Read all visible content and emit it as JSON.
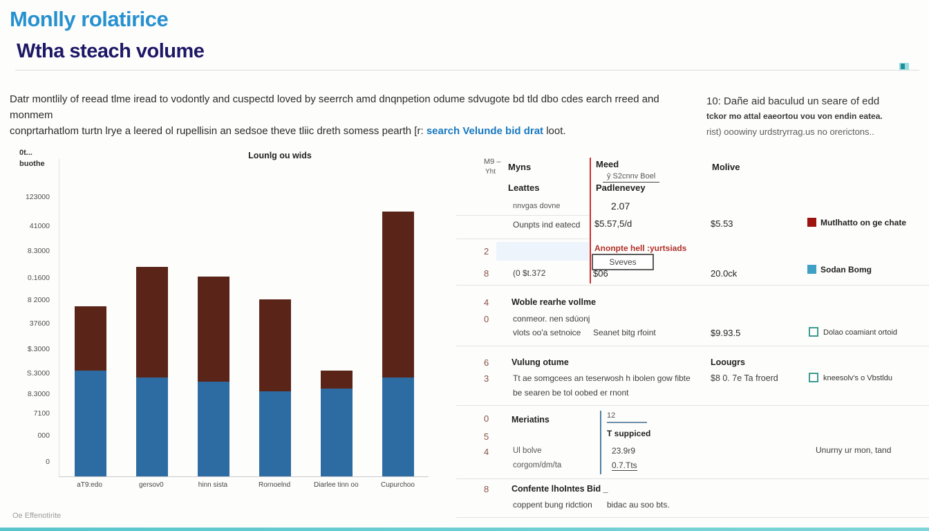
{
  "page": {
    "title": "Monlly rolatirice",
    "subtitle": "Wtha steach volume",
    "intro_line1": "Datr montlily of reead tlme iread to vodontly and cuspectd loved by seerrch amd dnqnpetion odume sdvugote bd tld dbo cdes earch rreed and monmem",
    "intro_line2_prefix": "conprtarhatlom turtn lrye a leered ol rupellisin an sedsoe theve tliic dreth somess pearth [r: ",
    "intro_link": "search Velunde bid drat",
    "intro_line2_suffix": " loot.",
    "footer": "Oe Effenotirite",
    "accent_teal": "#59c6cc"
  },
  "note": {
    "line1": "10: Dañe aid baculud un seare of edd",
    "line2": "tckor mo attal eaeortou vou von endin eatea.",
    "line3": "rist) ooowiny urdstryrrag.us no orerictons.."
  },
  "chart_data": {
    "type": "bar",
    "stacked": true,
    "title": "Lounlg ou wids",
    "y_axis_title": "0t...\nbuothe",
    "xlabel": "",
    "ylabel": "",
    "grid": false,
    "legend_position": "right-panel",
    "categories": [
      "aT9:edo",
      "gersov0",
      "hinn sista",
      "Rornoelnd",
      "Diarlee tinn oo",
      "Cupurchoo"
    ],
    "series": [
      {
        "name": "Sodan Bomg",
        "color": "#2d6ca3",
        "values": [
          46500,
          43500,
          41600,
          37400,
          38600,
          43500
        ]
      },
      {
        "name": "Mutlhatto on ge chate",
        "color": "#5a2418",
        "values": [
          28300,
          48600,
          46500,
          40400,
          7900,
          73000
        ]
      }
    ],
    "ylim": [
      0,
      140000
    ],
    "y_ticks": [
      {
        "label": "123000",
        "y": 75
      },
      {
        "label": "41000",
        "y": 117
      },
      {
        "label": "8.3000",
        "y": 153
      },
      {
        "label": "0.1600",
        "y": 192
      },
      {
        "label": "8 2000",
        "y": 224
      },
      {
        "label": "37600",
        "y": 258
      },
      {
        "label": "$.3000",
        "y": 295
      },
      {
        "label": "S.3000",
        "y": 330
      },
      {
        "label": "8.3000",
        "y": 360
      },
      {
        "label": "7100",
        "y": 388
      },
      {
        "label": "000",
        "y": 420
      },
      {
        "label": "0",
        "y": 458
      }
    ]
  },
  "legend": {
    "red_label": "Mutlhatto on ge chate",
    "red_color": "#9c1310",
    "blue_label": "Sodan Bomg",
    "blue_color": "#3f9fc4"
  },
  "panel": {
    "corner_top": "M9 –",
    "corner_bottom": "Yht",
    "col1_header": "Myns",
    "col2_header": "Meed",
    "col2_sub": "ŷ S2cnnv Boel",
    "col3_header": "Molive",
    "row_leattes": "Leattes",
    "row_padlenevey": "Padlenevey",
    "row_nnvgas": "nnvgas dovne",
    "value_207": "2.07",
    "row_ounpts": "Ounpts ind eatecd",
    "value_557": "$5.57,5/d",
    "value_553": "$5.53",
    "num_2": "2",
    "alert_text": "Anonpte hell :yurtsiads",
    "box_label": "Sveves",
    "num_8": "8",
    "row_0st": "(0 $t.372",
    "value_06": "$06",
    "value_200": "20.0ck",
    "num_4": "4",
    "row_woble": "Woble rearhe vollme",
    "num_0a": "0",
    "row_conmeor": "conmeor. nen sdúonj",
    "row_vlots": "vlots oo'a setnoice",
    "row_seanet": "Seanet bitg rfoint",
    "value_9935": "$9.93.5",
    "check1_label": "Dolao coamiant ortoid",
    "num_6": "6",
    "row_vulung": "Vulung otume",
    "row_loougrs": "Loougrs",
    "num_3": "3",
    "row_ttae": "Tt ae somgcees an teserwosh h ibolen gow fibte",
    "row_besearen": "be searen be tol oobed er rnont",
    "value_807": "$8 0. 7e Ta froerd",
    "check2_label": "kneesolv's o Vbstldu",
    "num_0b": "0",
    "row_meriatins": "Meriatins",
    "value_12": "12",
    "num_5": "5",
    "row_tsuppiced": "T suppiced",
    "num_4b": "4",
    "row_ulbolve": "Ul bolve",
    "value_2399": "23.9r9",
    "value_unurny": "Unurny ur mon, tand",
    "row_corgom": "corgom/dm/ta",
    "value_07tts": "0.7.Tts",
    "num_8b": "8",
    "row_confente": "Confente lhoIntes Bid _",
    "row_coppent": "coppent bung ridction",
    "row_bidac": "bidac au soo bts."
  }
}
